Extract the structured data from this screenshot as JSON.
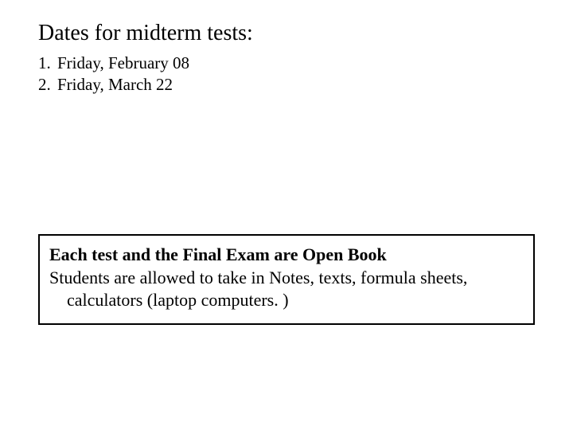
{
  "heading": "Dates for midterm tests:",
  "list": {
    "items": [
      {
        "num": "1.",
        "text": "Friday, February 08"
      },
      {
        "num": "2.",
        "text": "Friday, March 22"
      }
    ]
  },
  "note": {
    "line1": "Each test and the Final Exam are Open Book",
    "line2": "Students are allowed to take in Notes, texts, formula sheets, calculators (laptop computers. )"
  },
  "colors": {
    "background": "#ffffff",
    "text": "#000000",
    "border": "#000000"
  },
  "typography": {
    "heading_fontsize": 28,
    "list_fontsize": 21,
    "note_fontsize": 22,
    "font_family": "Times New Roman"
  }
}
